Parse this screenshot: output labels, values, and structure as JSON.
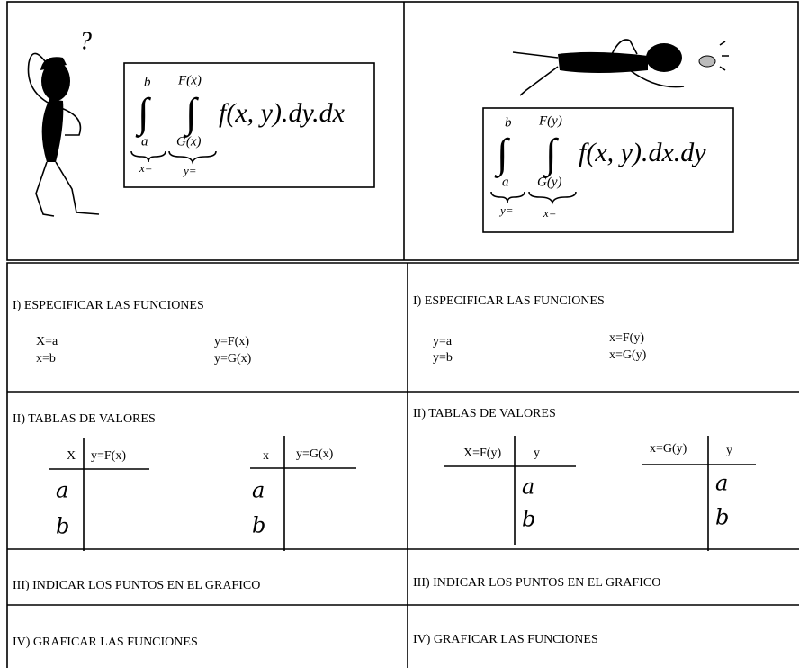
{
  "panels": [
    {
      "figure_mark": "?",
      "formula": {
        "outer_upper": "b",
        "inner_upper": "F(x)",
        "outer_sign": "∫",
        "inner_sign": "∫",
        "integrand": "f(x, y).dy.dx",
        "outer_lower": "a",
        "inner_lower": "G(x)",
        "outer_var": "x=",
        "inner_var": "y="
      }
    },
    {
      "formula": {
        "outer_upper": "b",
        "inner_upper": "F(y)",
        "outer_sign": "∫",
        "inner_sign": "∫",
        "integrand": "f(x, y).dx.dy",
        "outer_lower": "a",
        "inner_lower": "G(y)",
        "outer_var": "y=",
        "inner_var": "x="
      }
    }
  ],
  "steps": [
    {
      "left": {
        "title": "I) ESPECIFICAR LAS FUNCIONES",
        "pairs": [
          [
            "X=a",
            "y=F(x)"
          ],
          [
            "x=b",
            "y=G(x)"
          ]
        ]
      },
      "right": {
        "title": "I) ESPECIFICAR LAS FUNCIONES",
        "pairs": [
          [
            "y=a",
            "x=F(y)"
          ],
          [
            "y=b",
            "x=G(y)"
          ]
        ]
      }
    },
    {
      "left": {
        "title": "II)  TABLAS DE VALORES",
        "tables": [
          {
            "headers": [
              "X",
              "y=F(x)"
            ],
            "entries": [
              "a",
              "b"
            ]
          },
          {
            "headers": [
              "x",
              "y=G(x)"
            ],
            "entries": [
              "a",
              "b"
            ]
          }
        ]
      },
      "right": {
        "title": "II)  TABLAS DE VALORES",
        "tables": [
          {
            "headers": [
              "X=F(y)",
              "y"
            ],
            "entries": [
              "a",
              "b"
            ]
          },
          {
            "headers": [
              "x=G(y)",
              "y"
            ],
            "entries": [
              "a",
              "b"
            ]
          }
        ]
      }
    },
    {
      "left": {
        "title": "III)  INDICAR LOS PUNTOS EN EL GRAFICO"
      },
      "right": {
        "title": "III)  INDICAR LOS PUNTOS EN EL GRAFICO"
      }
    },
    {
      "left": {
        "title": "IV)  GRAFICAR LAS FUNCIONES"
      },
      "right": {
        "title": "IV)  GRAFICAR LAS FUNCIONES"
      }
    }
  ]
}
